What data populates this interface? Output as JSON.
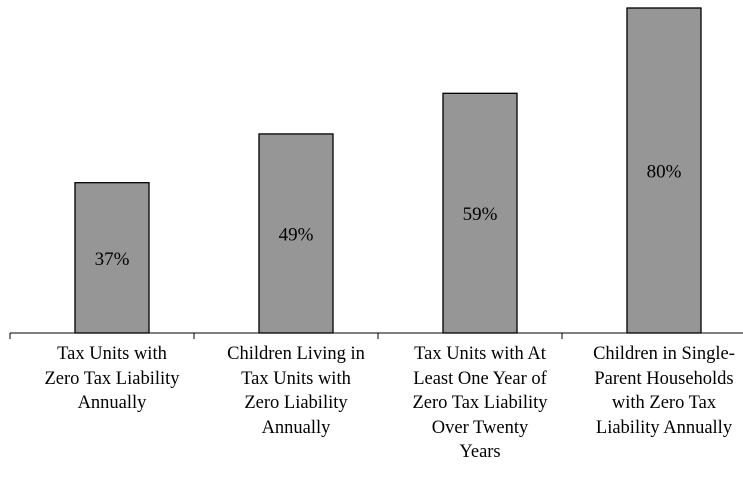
{
  "chart_data": {
    "type": "bar",
    "title": "",
    "xlabel": "",
    "ylabel": "",
    "categories": [
      "Tax Units with\nZero Tax Liability\nAnnually",
      "Children Living in\nTax Units with\nZero Liability\nAnnually",
      "Tax Units with At\nLeast One Year of\nZero Tax Liability\nOver Twenty\nYears",
      "Children in Single-\nParent Households\nwith Zero Tax\nLiability Annually"
    ],
    "values": [
      37,
      49,
      59,
      80
    ],
    "data_labels": [
      "37%",
      "49%",
      "59%",
      "80%"
    ],
    "ylim": [
      0,
      80
    ],
    "grid": false,
    "legend": "none",
    "bar_color": "#969696"
  }
}
